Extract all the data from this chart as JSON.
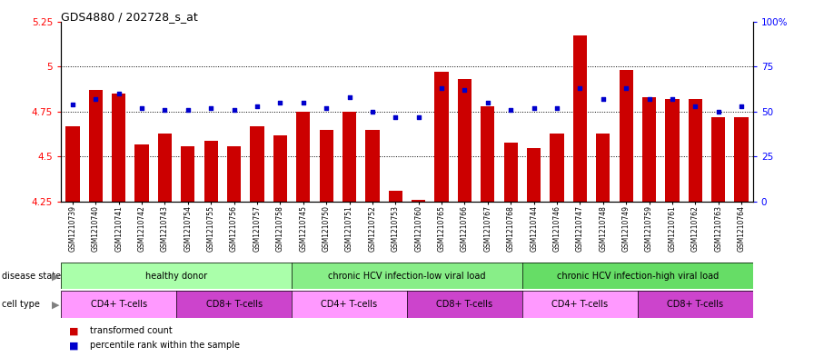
{
  "title": "GDS4880 / 202728_s_at",
  "samples": [
    "GSM1210739",
    "GSM1210740",
    "GSM1210741",
    "GSM1210742",
    "GSM1210743",
    "GSM1210754",
    "GSM1210755",
    "GSM1210756",
    "GSM1210757",
    "GSM1210758",
    "GSM1210745",
    "GSM1210750",
    "GSM1210751",
    "GSM1210752",
    "GSM1210753",
    "GSM1210760",
    "GSM1210765",
    "GSM1210766",
    "GSM1210767",
    "GSM1210768",
    "GSM1210744",
    "GSM1210746",
    "GSM1210747",
    "GSM1210748",
    "GSM1210749",
    "GSM1210759",
    "GSM1210761",
    "GSM1210762",
    "GSM1210763",
    "GSM1210764"
  ],
  "bar_values": [
    4.67,
    4.87,
    4.85,
    4.57,
    4.63,
    4.56,
    4.59,
    4.56,
    4.67,
    4.62,
    4.75,
    4.65,
    4.75,
    4.65,
    4.31,
    4.26,
    4.97,
    4.93,
    4.78,
    4.58,
    4.55,
    4.63,
    5.17,
    4.63,
    4.98,
    4.83,
    4.82,
    4.82,
    4.72,
    4.72
  ],
  "percentile_values": [
    54,
    57,
    60,
    52,
    51,
    51,
    52,
    51,
    53,
    55,
    55,
    52,
    58,
    50,
    47,
    47,
    63,
    62,
    55,
    51,
    52,
    52,
    63,
    57,
    63,
    57,
    57,
    53,
    50,
    53
  ],
  "ymin": 4.25,
  "ymax": 5.25,
  "yticks": [
    4.25,
    4.5,
    4.75,
    5.0,
    5.25
  ],
  "ytick_labels": [
    "4.25",
    "4.5",
    "4.75",
    "5",
    "5.25"
  ],
  "right_yticks": [
    0,
    25,
    50,
    75,
    100
  ],
  "right_ytick_labels": [
    "0",
    "25",
    "50",
    "75",
    "100%"
  ],
  "bar_color": "#CC0000",
  "dot_color": "#0000CC",
  "bg_color": "#FFFFFF",
  "disease_state_groups": [
    {
      "label": "healthy donor",
      "start": 0,
      "end": 10,
      "color": "#AAFFAA"
    },
    {
      "label": "chronic HCV infection-low viral load",
      "start": 10,
      "end": 20,
      "color": "#88EE88"
    },
    {
      "label": "chronic HCV infection-high viral load",
      "start": 20,
      "end": 30,
      "color": "#66DD66"
    }
  ],
  "cell_type_groups": [
    {
      "label": "CD4+ T-cells",
      "start": 0,
      "end": 5,
      "color": "#FF99FF"
    },
    {
      "label": "CD8+ T-cells",
      "start": 5,
      "end": 10,
      "color": "#CC44CC"
    },
    {
      "label": "CD4+ T-cells",
      "start": 10,
      "end": 15,
      "color": "#FF99FF"
    },
    {
      "label": "CD8+ T-cells",
      "start": 15,
      "end": 20,
      "color": "#CC44CC"
    },
    {
      "label": "CD4+ T-cells",
      "start": 20,
      "end": 25,
      "color": "#FF99FF"
    },
    {
      "label": "CD8+ T-cells",
      "start": 25,
      "end": 30,
      "color": "#CC44CC"
    }
  ]
}
